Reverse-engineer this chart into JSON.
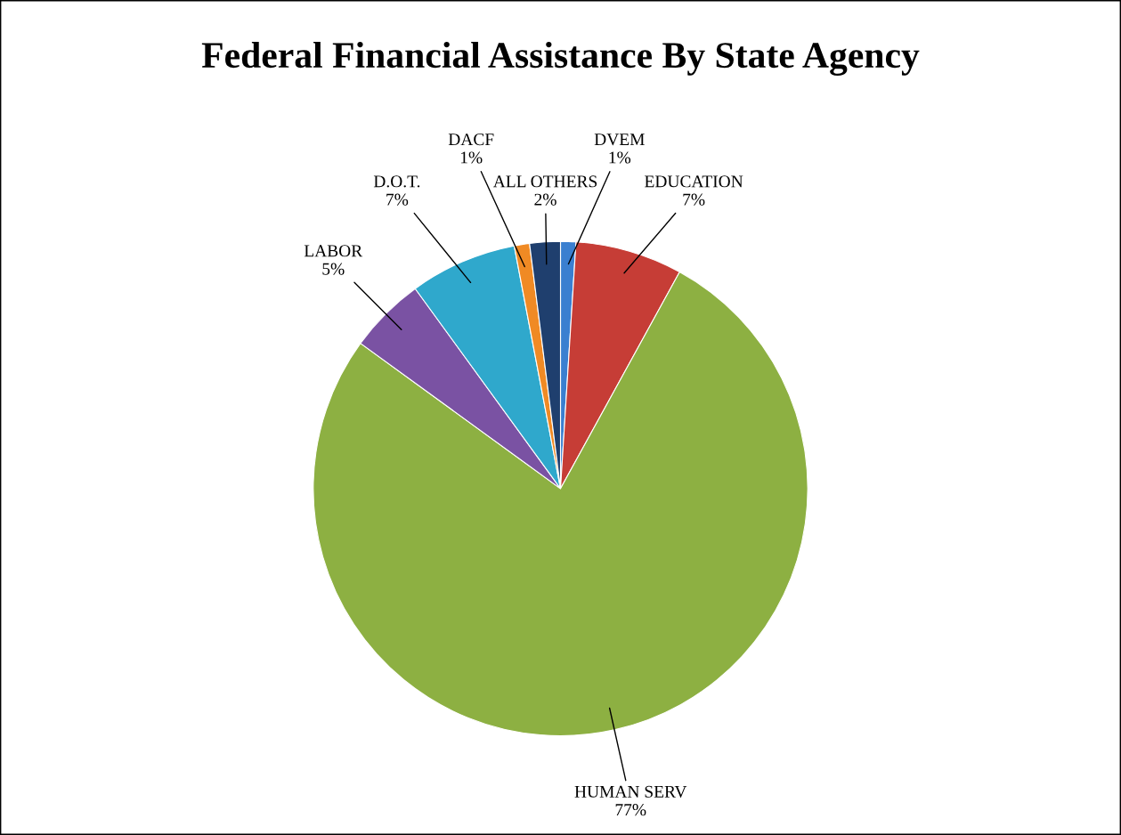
{
  "chart_data": {
    "type": "pie",
    "title": "Federal Financial Assistance By State Agency",
    "categories": [
      "DVEM",
      "EDUCATION",
      "HUMAN SERV",
      "LABOR",
      "D.O.T.",
      "DACF",
      "ALL OTHERS"
    ],
    "values": [
      1,
      7,
      77,
      5,
      7,
      1,
      2
    ],
    "value_labels": [
      "1%",
      "7%",
      "77%",
      "5%",
      "7%",
      "1%",
      "2%"
    ],
    "colors": [
      "#3a7fd0",
      "#c63d36",
      "#8db042",
      "#7a52a3",
      "#2fa8cc",
      "#f08a24",
      "#1f3f6e"
    ],
    "legend": false
  }
}
